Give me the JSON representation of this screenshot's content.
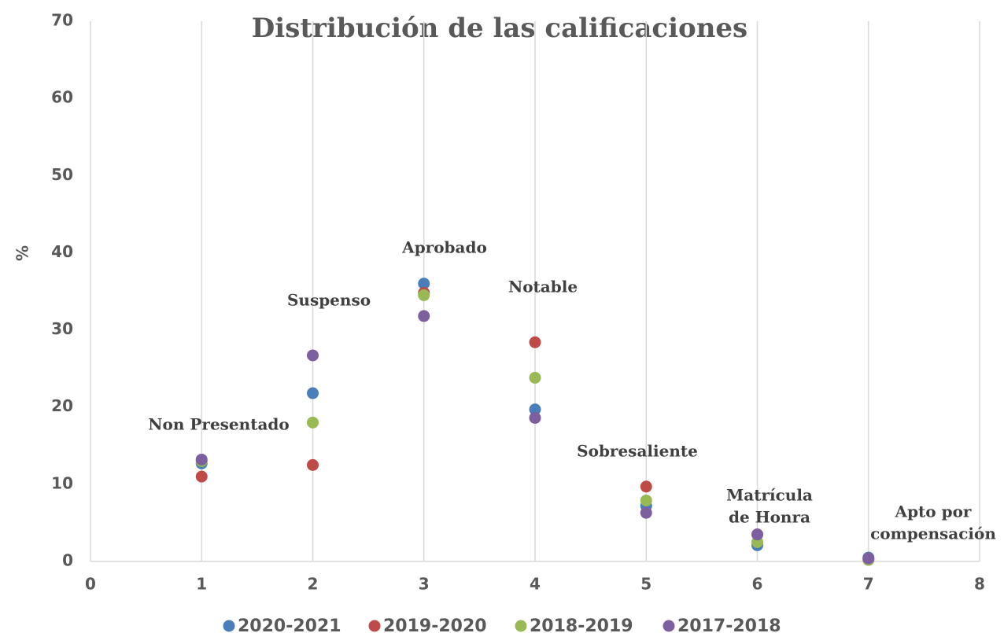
{
  "chart_data": {
    "type": "scatter",
    "title": "Distribución de las calificaciones",
    "y_label": "%",
    "xlim": [
      0,
      8
    ],
    "xticks": [
      0,
      1,
      2,
      3,
      4,
      5,
      6,
      7,
      8
    ],
    "ylim": [
      0,
      70
    ],
    "yticks": [
      0,
      10,
      20,
      30,
      40,
      50,
      60,
      70
    ],
    "grid": "x",
    "legend": "bottom",
    "x": [
      1,
      2,
      3,
      4,
      5,
      6,
      7
    ],
    "series": [
      {
        "name": "2020-2021",
        "color": "#4a7ebb",
        "values": [
          12.7,
          21.8,
          36.0,
          19.7,
          7.2,
          2.1,
          0.5
        ]
      },
      {
        "name": "2019-2020",
        "color": "#be4b48",
        "values": [
          11.0,
          12.5,
          34.8,
          28.4,
          9.7,
          3.5,
          0.2
        ]
      },
      {
        "name": "2018-2019",
        "color": "#98b954",
        "values": [
          13.0,
          18.0,
          34.5,
          23.8,
          7.9,
          2.5,
          0.2
        ]
      },
      {
        "name": "2017-2018",
        "color": "#7d5fa0",
        "values": [
          13.2,
          26.7,
          31.8,
          18.6,
          6.3,
          3.5,
          0.4
        ]
      }
    ],
    "annotations": [
      [
        "Non Presentado"
      ],
      [
        "Suspenso"
      ],
      [
        "Aprobado"
      ],
      [
        "Notable"
      ],
      [
        "Sobresaliente"
      ],
      [
        "Matrícula",
        "de Honra"
      ],
      [
        "Apto por",
        "compensación"
      ]
    ]
  }
}
